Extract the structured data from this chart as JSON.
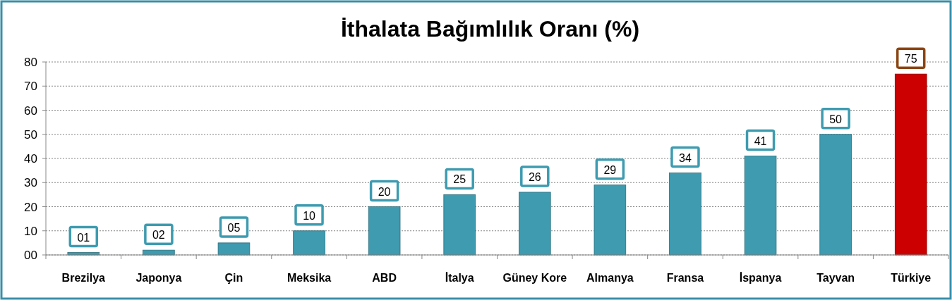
{
  "chart_data": {
    "type": "bar",
    "title": "İthalata Bağımlılık Oranı (%)",
    "categories": [
      "Brezilya",
      "Japonya",
      "Çin",
      "Meksika",
      "ABD",
      "İtalya",
      "Güney Kore",
      "Almanya",
      "Fransa",
      "İspanya",
      "Tayvan",
      "Türkiye"
    ],
    "values": [
      1,
      2,
      5,
      10,
      20,
      25,
      26,
      29,
      34,
      41,
      50,
      75
    ],
    "value_labels": [
      "01",
      "02",
      "05",
      "10",
      "20",
      "25",
      "26",
      "29",
      "34",
      "41",
      "50",
      "75"
    ],
    "colors": [
      "#3e9bb0",
      "#3e9bb0",
      "#3e9bb0",
      "#3e9bb0",
      "#3e9bb0",
      "#3e9bb0",
      "#3e9bb0",
      "#3e9bb0",
      "#3e9bb0",
      "#3e9bb0",
      "#3e9bb0",
      "#cc0000"
    ],
    "ylim": [
      0,
      80
    ],
    "yticks": [
      {
        "value": 0,
        "label": "00"
      },
      10,
      20,
      30,
      40,
      50,
      60,
      70,
      80
    ],
    "grid": "y"
  }
}
